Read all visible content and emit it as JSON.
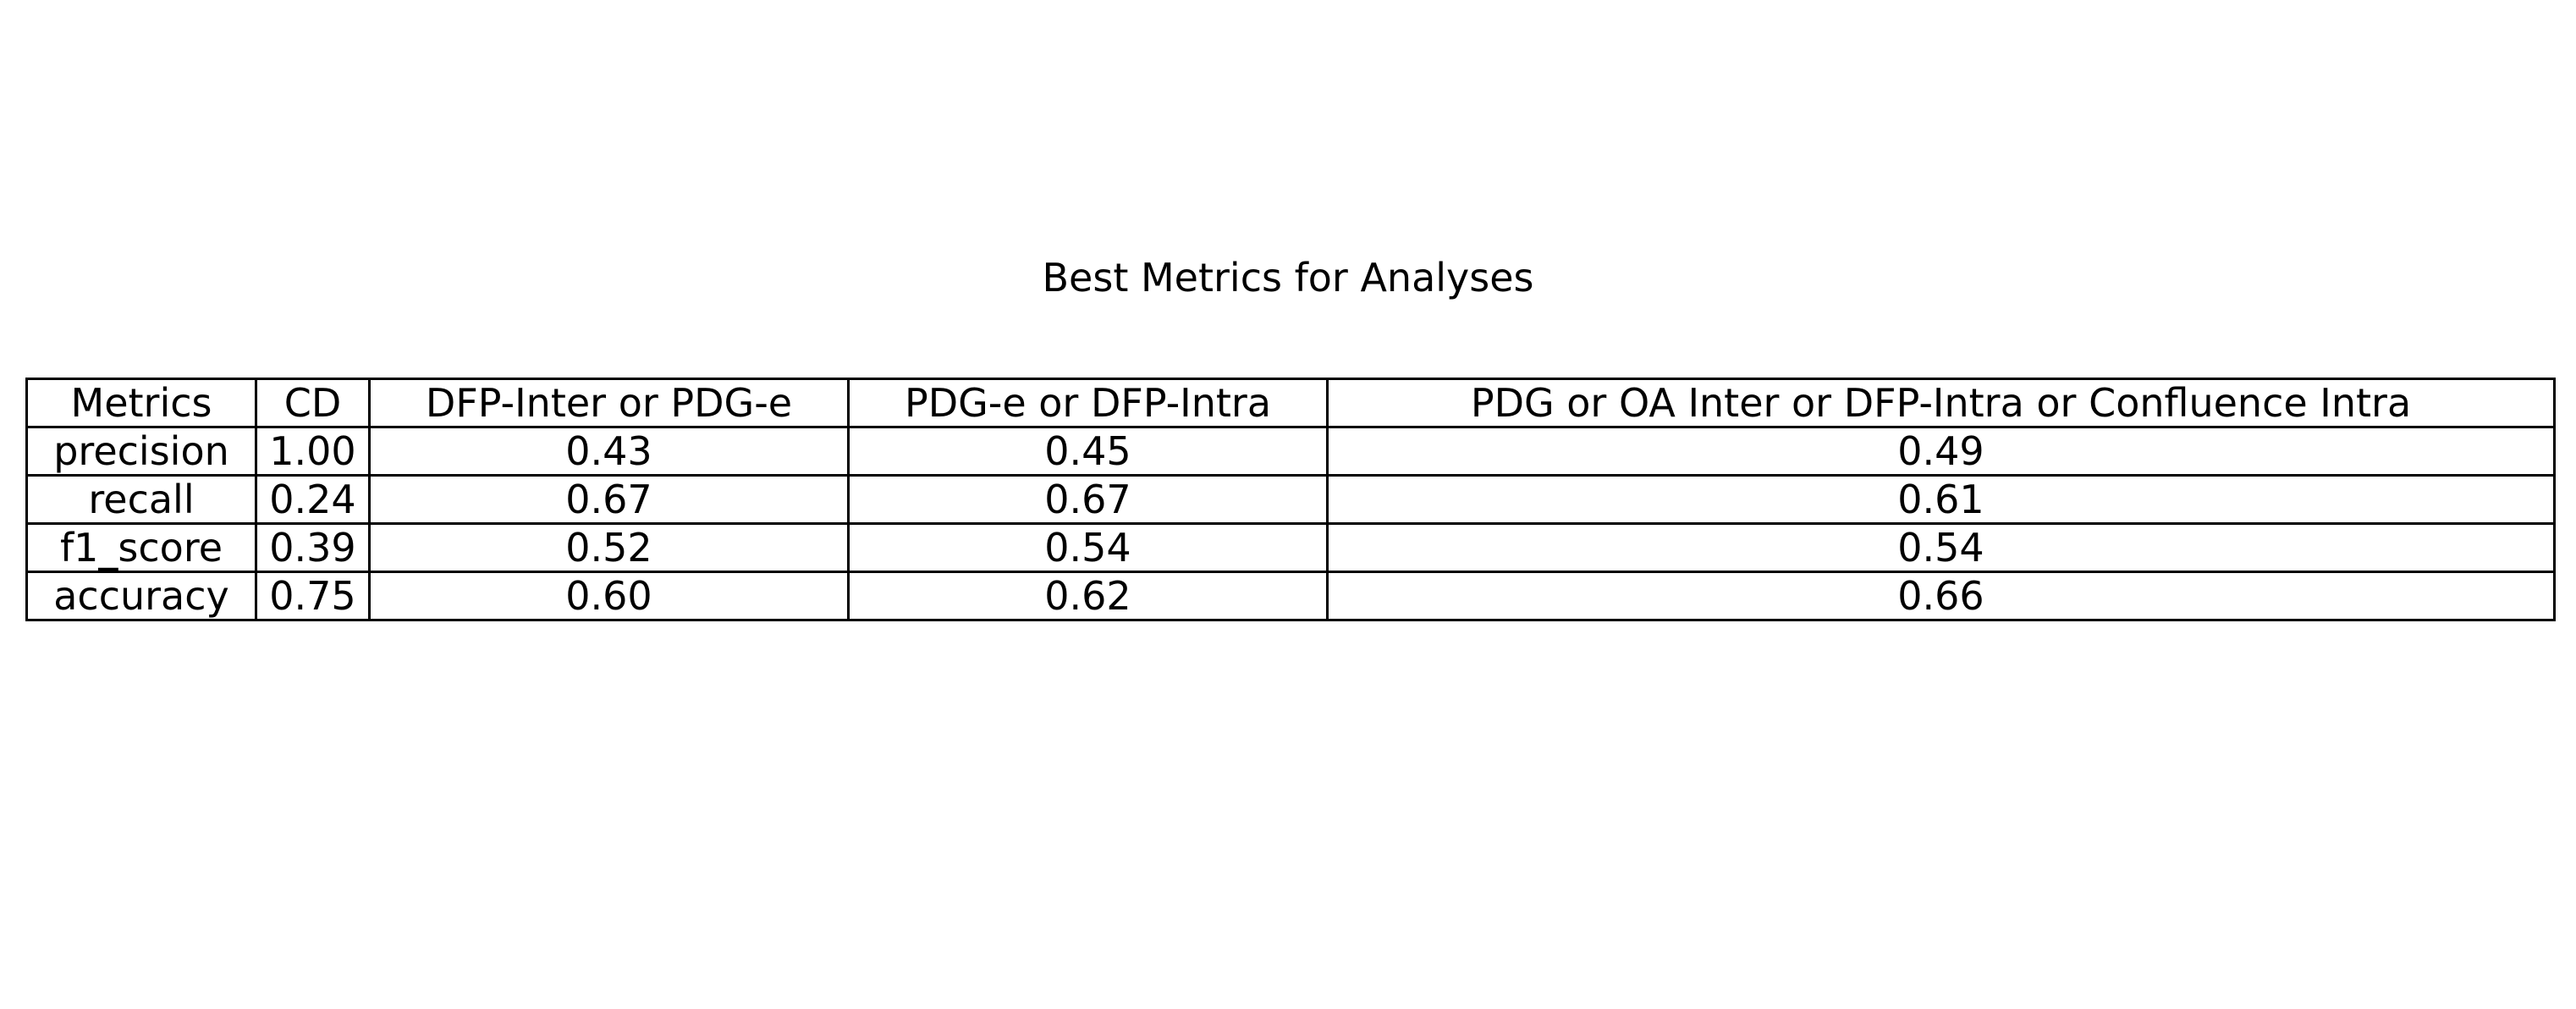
{
  "chart_data": {
    "type": "table",
    "title": "Best Metrics for Analyses",
    "columns": [
      "Metrics",
      "CD",
      "DFP-Inter or PDG-e",
      "PDG-e or DFP-Intra",
      "PDG or OA Inter or DFP-Intra or Confluence Intra"
    ],
    "rows": [
      [
        "precision",
        "1.00",
        "0.43",
        "0.45",
        "0.49"
      ],
      [
        "recall",
        "0.24",
        "0.67",
        "0.67",
        "0.61"
      ],
      [
        "f1_score",
        "0.39",
        "0.52",
        "0.54",
        "0.54"
      ],
      [
        "accuracy",
        "0.75",
        "0.60",
        "0.62",
        "0.66"
      ]
    ]
  }
}
